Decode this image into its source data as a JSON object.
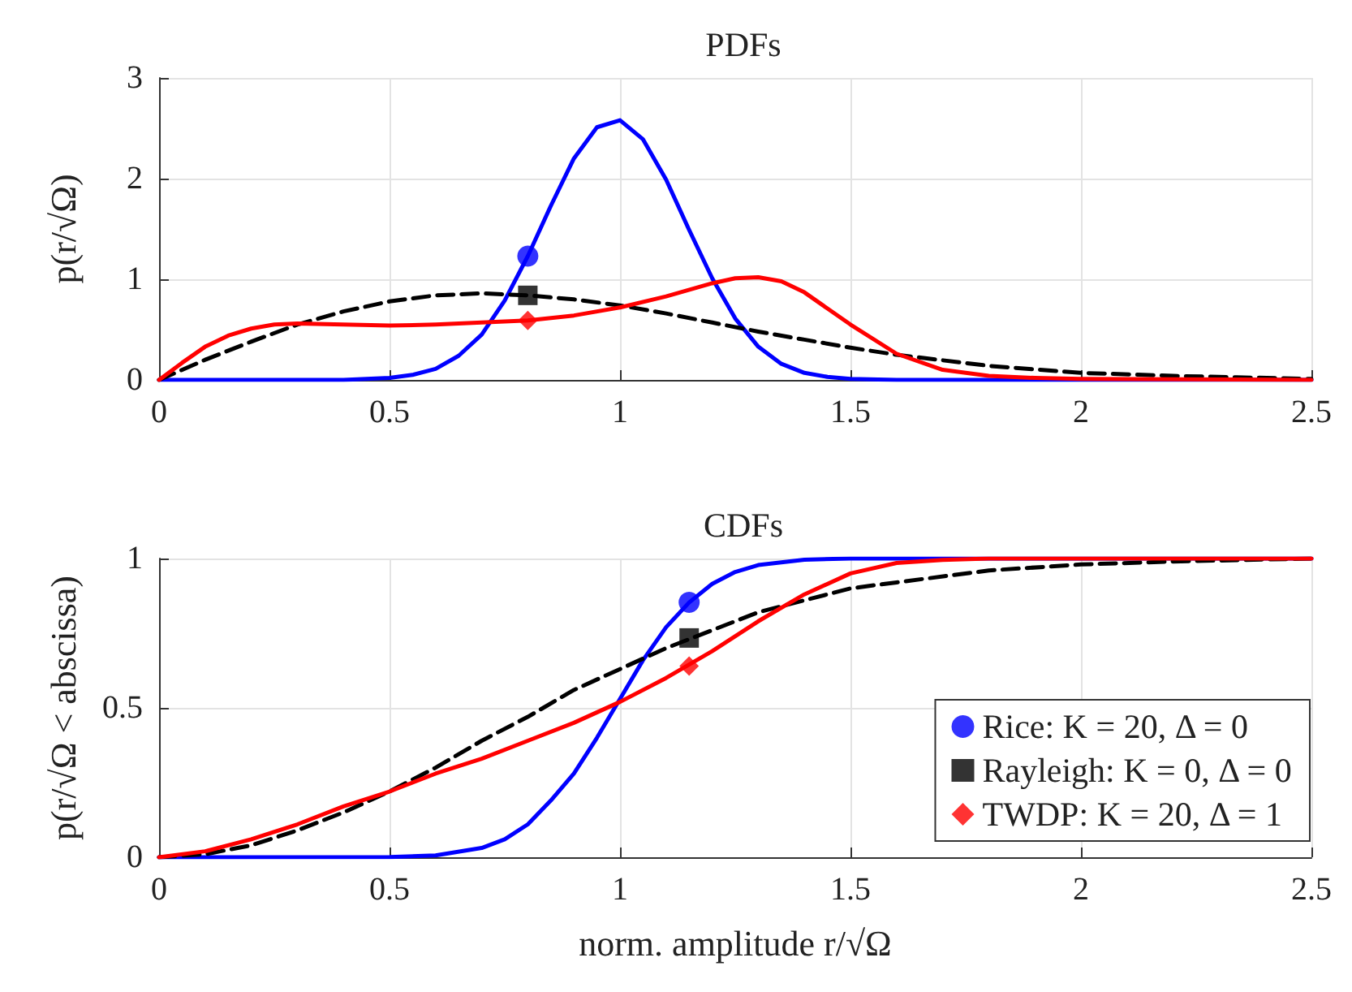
{
  "chart_data": [
    {
      "type": "line",
      "title": "PDFs",
      "ylabel": "p(r/√Ω)",
      "xlim": [
        0,
        2.5
      ],
      "xticks": [
        0,
        0.5,
        1,
        1.5,
        2,
        2.5
      ],
      "ylim": [
        0,
        3
      ],
      "yticks": [
        0,
        1,
        2,
        3
      ],
      "grid": true,
      "series": [
        {
          "color": "#0000ff",
          "line_style": "solid",
          "marker": "none",
          "x": [
            0,
            0.3,
            0.4,
            0.5,
            0.55,
            0.6,
            0.65,
            0.7,
            0.75,
            0.8,
            0.85,
            0.9,
            0.95,
            1.0,
            1.05,
            1.1,
            1.15,
            1.2,
            1.25,
            1.3,
            1.35,
            1.4,
            1.45,
            1.5,
            1.6,
            1.8,
            2.5
          ],
          "values": [
            0,
            0,
            0,
            0.02,
            0.05,
            0.11,
            0.24,
            0.45,
            0.79,
            1.23,
            1.73,
            2.2,
            2.51,
            2.58,
            2.39,
            1.99,
            1.49,
            1.01,
            0.61,
            0.33,
            0.16,
            0.07,
            0.03,
            0.01,
            0,
            0,
            0
          ]
        },
        {
          "color": "#000000",
          "line_style": "dashed",
          "marker": "none",
          "x": [
            0,
            0.1,
            0.2,
            0.3,
            0.4,
            0.5,
            0.6,
            0.7,
            0.8,
            0.9,
            1.0,
            1.1,
            1.2,
            1.3,
            1.4,
            1.5,
            1.6,
            1.8,
            2.0,
            2.2,
            2.5
          ],
          "values": [
            0,
            0.2,
            0.38,
            0.55,
            0.68,
            0.78,
            0.84,
            0.86,
            0.84,
            0.8,
            0.74,
            0.66,
            0.57,
            0.48,
            0.4,
            0.32,
            0.25,
            0.14,
            0.07,
            0.04,
            0.01
          ]
        },
        {
          "color": "#ff0000",
          "line_style": "solid",
          "marker": "none",
          "x": [
            0,
            0.05,
            0.1,
            0.15,
            0.2,
            0.25,
            0.3,
            0.4,
            0.5,
            0.6,
            0.7,
            0.8,
            0.9,
            1.0,
            1.1,
            1.2,
            1.25,
            1.3,
            1.35,
            1.4,
            1.5,
            1.6,
            1.7,
            1.8,
            1.9,
            2.0,
            2.5
          ],
          "values": [
            0,
            0.17,
            0.33,
            0.44,
            0.51,
            0.55,
            0.56,
            0.55,
            0.54,
            0.55,
            0.57,
            0.59,
            0.64,
            0.72,
            0.83,
            0.96,
            1.01,
            1.02,
            0.98,
            0.87,
            0.55,
            0.26,
            0.1,
            0.04,
            0.02,
            0.01,
            0
          ]
        },
        {
          "type": "scatter",
          "color": "#0000ff",
          "marker": "circle",
          "x": [
            0.8
          ],
          "values": [
            1.23
          ]
        },
        {
          "type": "scatter",
          "color": "#000000",
          "marker": "square",
          "x": [
            0.8
          ],
          "values": [
            0.84
          ]
        },
        {
          "type": "scatter",
          "color": "#ff0000",
          "marker": "diamond",
          "x": [
            0.8
          ],
          "values": [
            0.59
          ]
        }
      ]
    },
    {
      "type": "line",
      "title": "CDFs",
      "xlabel": "norm. amplitude r/√Ω",
      "ylabel": "p(r/√Ω < abscissa)",
      "xlim": [
        0,
        2.5
      ],
      "xticks": [
        0,
        0.5,
        1,
        1.5,
        2,
        2.5
      ],
      "ylim": [
        0,
        1
      ],
      "yticks": [
        0,
        0.5,
        1
      ],
      "grid": true,
      "legend": "bottom right",
      "series": [
        {
          "color": "#0000ff",
          "line_style": "solid",
          "marker": "none",
          "x": [
            0,
            0.5,
            0.6,
            0.7,
            0.75,
            0.8,
            0.85,
            0.9,
            0.95,
            1.0,
            1.05,
            1.1,
            1.15,
            1.2,
            1.25,
            1.3,
            1.4,
            1.5,
            2.5
          ],
          "values": [
            0,
            0.001,
            0.006,
            0.031,
            0.06,
            0.11,
            0.19,
            0.28,
            0.4,
            0.53,
            0.66,
            0.77,
            0.853,
            0.915,
            0.955,
            0.978,
            0.996,
            1,
            1
          ]
        },
        {
          "color": "#000000",
          "line_style": "dashed",
          "marker": "none",
          "x": [
            0,
            0.1,
            0.2,
            0.3,
            0.4,
            0.5,
            0.6,
            0.7,
            0.8,
            0.9,
            1.0,
            1.1,
            1.2,
            1.3,
            1.4,
            1.5,
            1.6,
            1.8,
            2.0,
            2.2,
            2.5
          ],
          "values": [
            0,
            0.01,
            0.04,
            0.09,
            0.15,
            0.22,
            0.3,
            0.39,
            0.47,
            0.56,
            0.63,
            0.7,
            0.76,
            0.82,
            0.86,
            0.9,
            0.92,
            0.96,
            0.98,
            0.99,
            1
          ]
        },
        {
          "color": "#ff0000",
          "line_style": "solid",
          "marker": "none",
          "x": [
            0,
            0.1,
            0.2,
            0.3,
            0.4,
            0.5,
            0.6,
            0.7,
            0.8,
            0.9,
            1.0,
            1.1,
            1.2,
            1.3,
            1.4,
            1.5,
            1.6,
            1.7,
            1.8,
            2.0,
            2.5
          ],
          "values": [
            0,
            0.02,
            0.06,
            0.11,
            0.17,
            0.22,
            0.28,
            0.33,
            0.39,
            0.45,
            0.52,
            0.6,
            0.69,
            0.79,
            0.88,
            0.95,
            0.985,
            0.995,
            1,
            1,
            1
          ]
        },
        {
          "type": "scatter",
          "name": "Rice: K = 20, Δ = 0",
          "color": "#0000ff",
          "marker": "circle",
          "x": [
            1.15
          ],
          "values": [
            0.853
          ]
        },
        {
          "type": "scatter",
          "name": "Rayleigh: K = 0, Δ = 0",
          "color": "#000000",
          "marker": "square",
          "x": [
            1.15
          ],
          "values": [
            0.734
          ]
        },
        {
          "type": "scatter",
          "name": "TWDP: K = 20, Δ = 1",
          "color": "#ff0000",
          "marker": "diamond",
          "x": [
            1.15
          ],
          "values": [
            0.64
          ]
        }
      ]
    }
  ]
}
